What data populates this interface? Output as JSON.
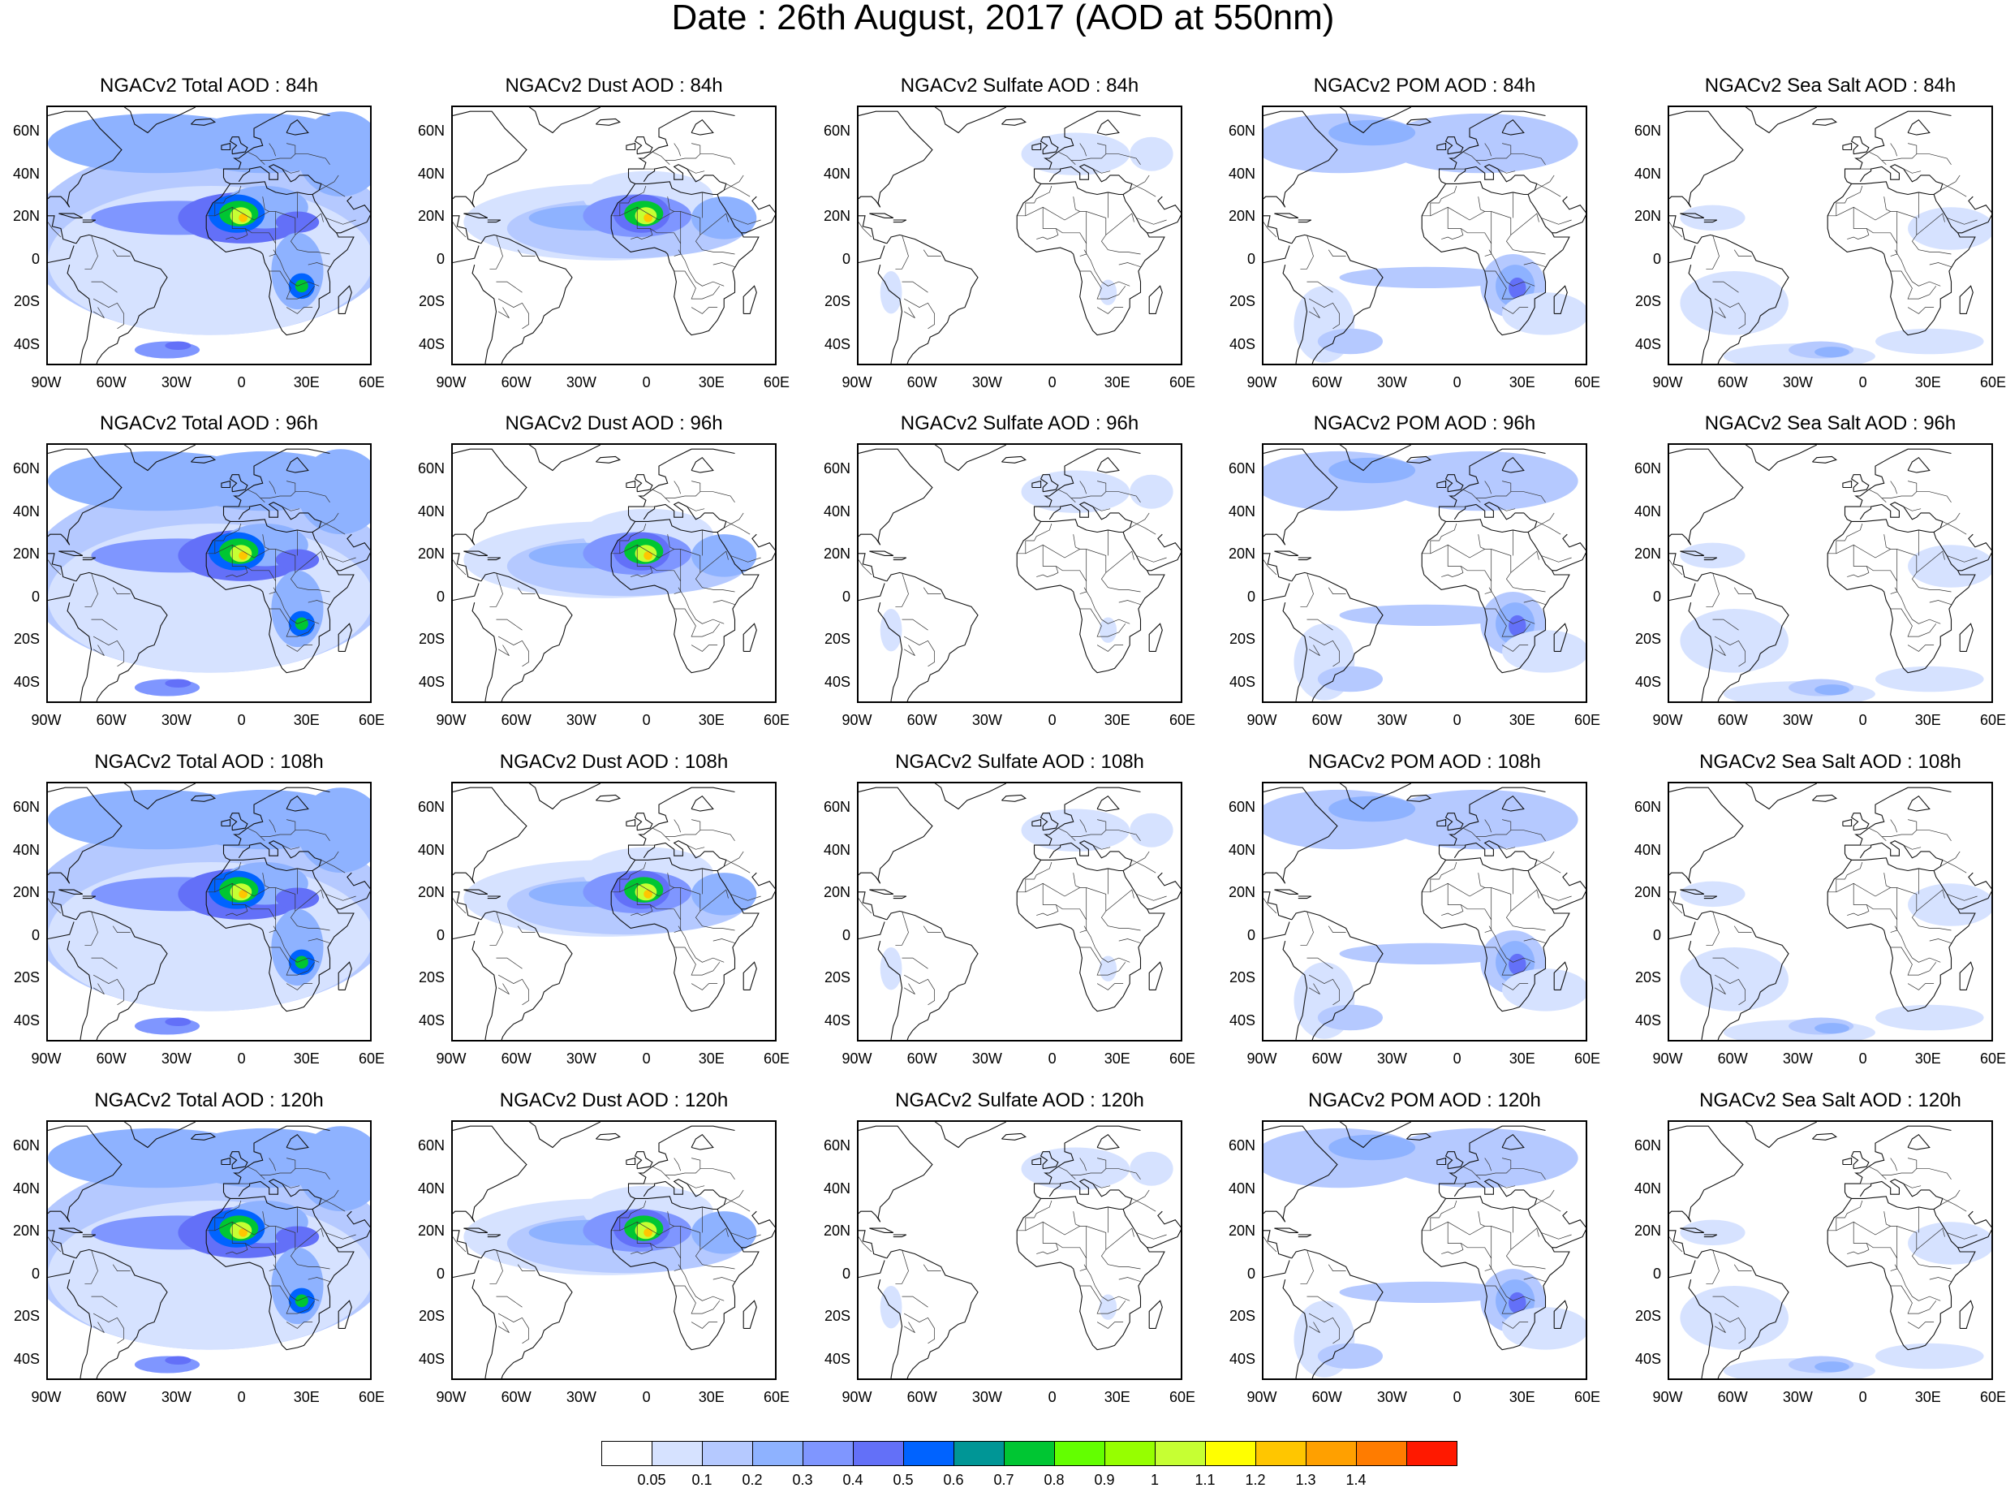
{
  "title": "Date : 26th August, 2017 (AOD at 550nm)",
  "panels": [
    {
      "title": "NGACv2 Total AOD : 84h",
      "species": "total",
      "row": 0,
      "col": 0
    },
    {
      "title": "NGACv2 Dust AOD : 84h",
      "species": "dust",
      "row": 0,
      "col": 1
    },
    {
      "title": "NGACv2 Sulfate AOD : 84h",
      "species": "sulfate",
      "row": 0,
      "col": 2
    },
    {
      "title": "NGACv2 POM AOD : 84h",
      "species": "pom",
      "row": 0,
      "col": 3
    },
    {
      "title": "NGACv2 Sea Salt AOD : 84h",
      "species": "seasalt",
      "row": 0,
      "col": 4
    },
    {
      "title": "NGACv2 Total AOD : 96h",
      "species": "total",
      "row": 1,
      "col": 0
    },
    {
      "title": "NGACv2 Dust AOD : 96h",
      "species": "dust",
      "row": 1,
      "col": 1
    },
    {
      "title": "NGACv2 Sulfate AOD : 96h",
      "species": "sulfate",
      "row": 1,
      "col": 2
    },
    {
      "title": "NGACv2 POM AOD : 96h",
      "species": "pom",
      "row": 1,
      "col": 3
    },
    {
      "title": "NGACv2 Sea Salt AOD : 96h",
      "species": "seasalt",
      "row": 1,
      "col": 4
    },
    {
      "title": "NGACv2 Total AOD : 108h",
      "species": "total",
      "row": 2,
      "col": 0
    },
    {
      "title": "NGACv2 Dust AOD : 108h",
      "species": "dust",
      "row": 2,
      "col": 1
    },
    {
      "title": "NGACv2 Sulfate AOD : 108h",
      "species": "sulfate",
      "row": 2,
      "col": 2
    },
    {
      "title": "NGACv2 POM AOD : 108h",
      "species": "pom",
      "row": 2,
      "col": 3
    },
    {
      "title": "NGACv2 Sea Salt AOD : 108h",
      "species": "seasalt",
      "row": 2,
      "col": 4
    },
    {
      "title": "NGACv2 Total AOD : 120h",
      "species": "total",
      "row": 3,
      "col": 0
    },
    {
      "title": "NGACv2 Dust AOD : 120h",
      "species": "dust",
      "row": 3,
      "col": 1
    },
    {
      "title": "NGACv2 Sulfate AOD : 120h",
      "species": "sulfate",
      "row": 3,
      "col": 2
    },
    {
      "title": "NGACv2 POM AOD : 120h",
      "species": "pom",
      "row": 3,
      "col": 3
    },
    {
      "title": "NGACv2 Sea Salt  AOD : 120h",
      "species": "seasalt",
      "row": 3,
      "col": 4
    }
  ],
  "lat_labels": [
    "60N",
    "40N",
    "20N",
    "0",
    "20S",
    "40S"
  ],
  "lon_labels": [
    "90W",
    "60W",
    "30W",
    "0",
    "30E",
    "60E"
  ],
  "map_extent": {
    "lon": [
      -90,
      60
    ],
    "lat": [
      -50,
      72
    ]
  },
  "colorbar": {
    "colors": [
      "#ffffff",
      "#d6e2ff",
      "#b5c9ff",
      "#8eb2ff",
      "#7f96ff",
      "#6370f8",
      "#0063ff",
      "#009696",
      "#00c633",
      "#63ff00",
      "#96ff00",
      "#c6ff33",
      "#ffff00",
      "#ffc600",
      "#ffa000",
      "#ff7c00",
      "#ff1900"
    ],
    "labels": [
      "0.05",
      "0.1",
      "0.2",
      "0.3",
      "0.4",
      "0.5",
      "0.6",
      "0.7",
      "0.8",
      "0.9",
      "1",
      "1.1",
      "1.2",
      "1.3",
      "1.4"
    ]
  }
}
